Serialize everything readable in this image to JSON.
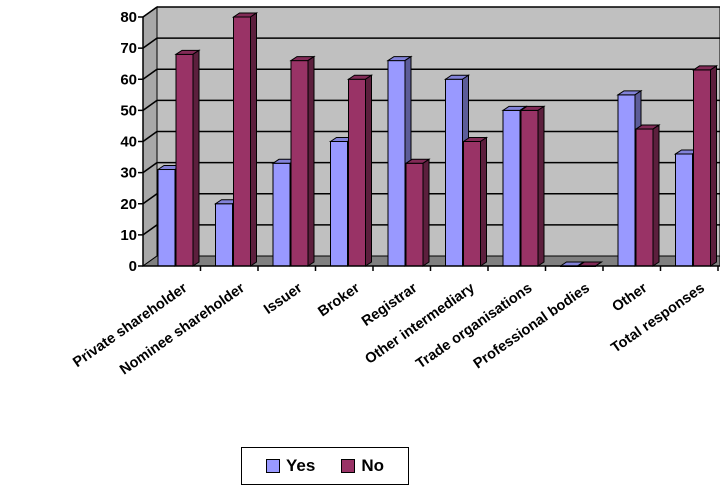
{
  "chart_data": {
    "type": "bar",
    "categories": [
      "Private shareholder",
      "Nominee shareholder",
      "Issuer",
      "Broker",
      "Registrar",
      "Other intermediary",
      "Trade organisations",
      "Professional bodies",
      "Other",
      "Total responses"
    ],
    "series": [
      {
        "name": "Yes",
        "color": "#9999ff",
        "values": [
          31,
          20,
          33,
          40,
          66,
          60,
          50,
          0,
          55,
          36
        ]
      },
      {
        "name": "No",
        "color": "#993366",
        "values": [
          68,
          80,
          66,
          60,
          33,
          40,
          50,
          0,
          44,
          63
        ]
      }
    ],
    "yticks": [
      0,
      10,
      20,
      30,
      40,
      50,
      60,
      70,
      80
    ],
    "ylim": [
      0,
      80
    ],
    "grid": true,
    "style": "3d-column",
    "wall_color": "#c0c0c0",
    "legend_position": "bottom"
  },
  "legend": {
    "yes_label": "Yes",
    "no_label": "No"
  }
}
